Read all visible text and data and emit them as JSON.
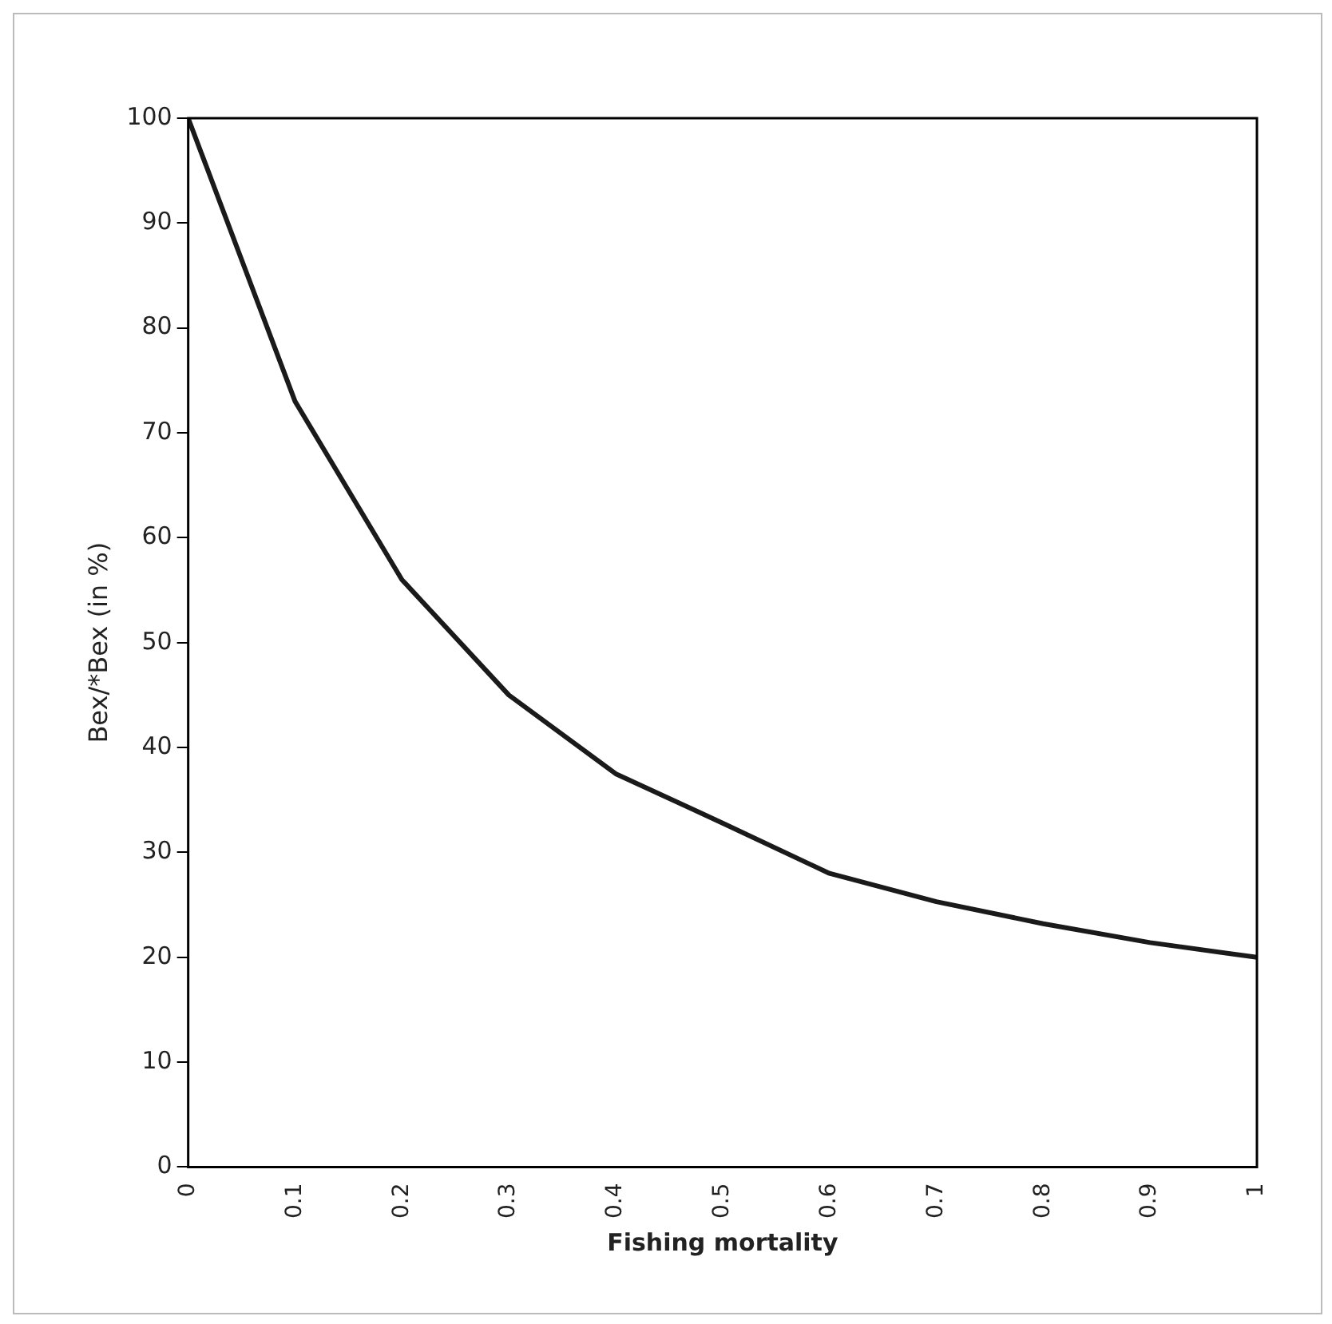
{
  "chart_data": {
    "type": "line",
    "xlabel": "Fishing mortality",
    "ylabel": "Bex/*Bex (in %)",
    "x": [
      0,
      0.1,
      0.2,
      0.3,
      0.4,
      0.5,
      0.6,
      0.7,
      0.8,
      0.9,
      1
    ],
    "series": [
      {
        "color": "#1a1a1a",
        "values": [
          100,
          73,
          56,
          45,
          37.5,
          32.8,
          28,
          25.3,
          23.2,
          21.4,
          20
        ]
      }
    ],
    "xlim": [
      0,
      1
    ],
    "xticks": [
      0,
      0.1,
      0.2,
      0.3,
      0.4,
      0.5,
      0.6,
      0.7,
      0.8,
      0.9,
      1
    ],
    "ylim": [
      0,
      100
    ],
    "yticks": [
      0,
      10,
      20,
      30,
      40,
      50,
      60,
      70,
      80,
      90,
      100
    ],
    "grid": false,
    "legend": false,
    "marker": "none",
    "line_style": "solid"
  }
}
